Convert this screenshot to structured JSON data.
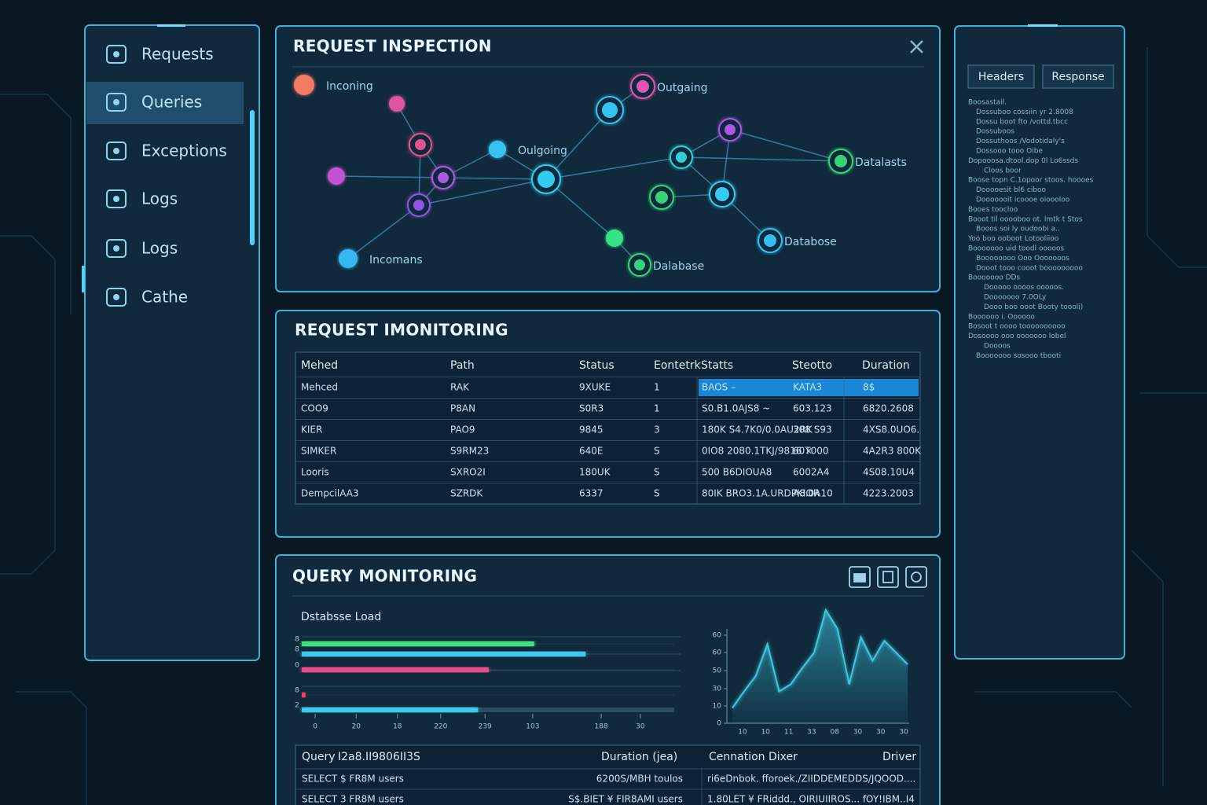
{
  "sidebar": {
    "items": [
      {
        "label": "Requests"
      },
      {
        "label": "Queries",
        "active": true
      },
      {
        "label": "Exceptions"
      },
      {
        "label": "Logs"
      },
      {
        "label": "Logs"
      },
      {
        "label": "Cathe"
      }
    ]
  },
  "inspection": {
    "title": "REQUEST INSPECTION",
    "nodes": [
      {
        "label": "Inconing",
        "color": "#f07a62"
      },
      {
        "color": "#e052a0"
      },
      {
        "color": "#e8508e"
      },
      {
        "color": "#c452d4"
      },
      {
        "color": "#b058e6"
      },
      {
        "color": "#9252e4"
      },
      {
        "label": "Incomans",
        "color": "#34b8f2"
      },
      {
        "label": "Oulgoing",
        "color": "#36c4f2"
      },
      {
        "color": "#36ccf2"
      },
      {
        "color": "#36c4f2"
      },
      {
        "label": "Outgaing",
        "color": "#e054b4"
      },
      {
        "color": "#30d0d4"
      },
      {
        "color": "#b056e6"
      },
      {
        "label": "Datalasts",
        "color": "#34d474"
      },
      {
        "color": "#36ccf2"
      },
      {
        "color": "#34d474"
      },
      {
        "color": "#36e284"
      },
      {
        "label": "Dalabase",
        "color": "#34d474"
      },
      {
        "label": "Databose",
        "color": "#36bcf2"
      }
    ]
  },
  "monitoring": {
    "title": "REQUEST IMONITORING",
    "columns": [
      "Mehed",
      "Path",
      "Status",
      "Eontetrk",
      "Statts",
      "Steotto",
      "Duration"
    ],
    "rows": [
      {
        "cells": [
          "Mehced",
          "RAK",
          "9XUKE",
          "1",
          "BAOS   –",
          "KATA3",
          "8$"
        ],
        "highlighted": true
      },
      {
        "cells": [
          "COO9",
          "P8AN",
          "S0R3",
          "1",
          "S0.B1.0AJS8  ~",
          "603.123",
          "6820.2608"
        ]
      },
      {
        "cells": [
          "KIER",
          "PAO9",
          "9845",
          "3",
          "180K S4.7K0/0.0AU2RK",
          "308 S93",
          "4XS8.0UO6."
        ]
      },
      {
        "cells": [
          "SIMKER",
          "S9RM23",
          "640E",
          "S",
          "0IO8 2080.1TKJ/9816 ×",
          "60T000",
          "4A2R3 800K"
        ]
      },
      {
        "cells": [
          "Looris",
          "SXRO2I",
          "180UK",
          "S",
          "500 B6DIOUA8",
          "6002A4",
          "4S08.10U4"
        ]
      },
      {
        "cells": [
          "DempcilAA3",
          "SZRDK",
          "6337",
          "S",
          "80IK BRO3.1A.URDPKIOR",
          "A8.0A10",
          "4223.2003"
        ]
      }
    ]
  },
  "query": {
    "title": "QUERY MONITORING",
    "load_chart": {
      "type": "bar",
      "title": "Dstabsse Load",
      "orientation": "horizontal",
      "categories": [
        "8",
        "8",
        "0",
        "8",
        "2"
      ],
      "values": [
        62.4,
        76.2,
        50.2,
        1,
        47.3
      ],
      "colors": [
        "#3ee07a",
        "#3cc8ec",
        "#e8508a",
        "#ff3a5a",
        "#3cc8ec"
      ],
      "xlim": [
        0,
        100
      ],
      "xticks": [
        {
          "value": 3.6,
          "label": "0"
        },
        {
          "value": 14.6,
          "label": "20"
        },
        {
          "value": 25.7,
          "label": "18"
        },
        {
          "value": 37.3,
          "label": "220"
        },
        {
          "value": 49.2,
          "label": "239"
        },
        {
          "value": 62,
          "label": "103"
        },
        {
          "value": 80.4,
          "label": "188"
        },
        {
          "value": 90.9,
          "label": "30"
        }
      ]
    },
    "trend_chart": {
      "type": "area",
      "values": [
        13,
        27,
        40,
        67,
        27,
        33,
        47,
        60,
        96,
        80,
        33,
        73,
        53,
        70,
        60,
        50
      ],
      "color": "#3cc8e0",
      "ylim": [
        0,
        100
      ],
      "yticks": [
        0,
        {
          "value": 14.7,
          "label": "10"
        },
        {
          "value": 29.3,
          "label": "30"
        },
        {
          "value": 44.7,
          "label": "50"
        },
        {
          "value": 60,
          "label": "60"
        },
        {
          "value": 74.7,
          "label": "60"
        }
      ],
      "xlabels": [
        "10",
        "10",
        "11",
        "33",
        "08",
        "30",
        "30",
        "30"
      ]
    },
    "table": {
      "columns": [
        "Query",
        "I2a8.II9806II3S",
        "Duration (jea)",
        "Cennation  Dixer",
        "Driver"
      ],
      "rows": [
        [
          "SELECT $ FR8M users",
          "6200S/MBH toulos",
          "ri6eDnbok. fforoek./ZIIDDEMEDDS/JQOOD...."
        ],
        [
          "SELECT 3 FR8M users",
          "S$.BIET ¥ FIR8AMI users",
          "1.80LET ¥ FRiddd., OIRIUIIROS... fOY!IBM..I4"
        ]
      ]
    }
  },
  "details": {
    "tabs": [
      "Headers",
      "Response"
    ],
    "lines": [
      "Boosastail.",
      "Dossuboo cossiin yr 2.8008",
      "Dossu boot fto /vottd.tbcc",
      "Dossuboos",
      "Dossuthoos /Vodotidaly's",
      "Dossooo tooo Oibe",
      "Dopooosa.dtool.dop 0l Lo6ssds",
      "Cloos boor",
      "Boose topn C.1opoor stoos. hoooes",
      "Dooooesit bl6 ciboo",
      "Dooooooit icoooe oioooloo",
      "Booes toocloo",
      "Booot til ooooboo ot. lmtk t Stos",
      "Booos soi ly oudoobi a..",
      "Yoo boo ooboot Lotooliioo",
      "Booooooo uid toodl ooooos",
      "Boooooooo Ooo Ooooooos",
      "Dooot tooo cooot booooooooo",
      "Booooooo DDs",
      "Dooooo oooos ooooos.",
      "Dooooooo 7.0OLy",
      "Dooo boo ooot Booty toooli)",
      "Boooooo i. Oooooo",
      "Bosoot t oooo toooooooooo",
      "Dosoooo ooo ooooooo lobel",
      "Doooos",
      "Booooooo sosooo tbooti"
    ]
  }
}
